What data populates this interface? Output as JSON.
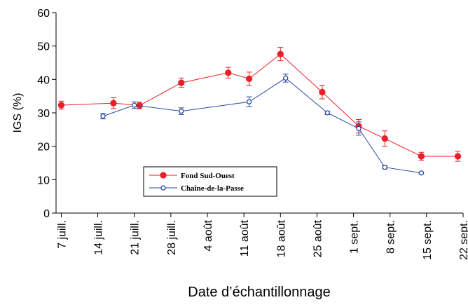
{
  "chart_data": {
    "type": "line",
    "y_label": "IGS (%)",
    "x_label": "Date d’échantillonnage",
    "xlim": [
      -1,
      77
    ],
    "xticks": [
      {
        "value": 0,
        "label": "7 juill."
      },
      {
        "value": 7,
        "label": "14 juill."
      },
      {
        "value": 14,
        "label": "21 juill."
      },
      {
        "value": 21,
        "label": "28 juill."
      },
      {
        "value": 28,
        "label": "4 août"
      },
      {
        "value": 35,
        "label": "11 août"
      },
      {
        "value": 42,
        "label": "18 août"
      },
      {
        "value": 49,
        "label": "25 août"
      },
      {
        "value": 56,
        "label": "1 sept."
      },
      {
        "value": 63,
        "label": "8 sept."
      },
      {
        "value": 70,
        "label": "15 sept."
      },
      {
        "value": 77,
        "label": "22 sept."
      }
    ],
    "ylim": [
      0,
      60
    ],
    "yticks": [
      0,
      10,
      20,
      30,
      40,
      50,
      60
    ],
    "series": [
      {
        "name": "Fond Sud-Ouest",
        "color": "#e8202a",
        "marker": "filled",
        "x": [
          0,
          10,
          15,
          23,
          32,
          36,
          42,
          50,
          57,
          62,
          69,
          76
        ],
        "values": [
          32.3,
          32.9,
          32.2,
          39,
          42,
          40.2,
          47.6,
          36.2,
          26,
          22.3,
          17,
          17
        ],
        "errors": [
          1.2,
          1.6,
          1,
          1.4,
          1.6,
          2,
          2,
          2,
          2,
          2.3,
          1.2,
          1.5
        ]
      },
      {
        "name": "Chaîne-de-la-Passe",
        "color": "#2a4aa0",
        "marker": "open",
        "x": [
          8,
          14,
          23,
          36,
          43,
          51,
          57,
          62,
          69
        ],
        "values": [
          29,
          32.3,
          30.5,
          33.3,
          40.4,
          30,
          25.3,
          13.7,
          12
        ],
        "errors": [
          0.8,
          1,
          1,
          1.5,
          1.2,
          0.5,
          2,
          0.5,
          0.3
        ]
      }
    ]
  }
}
